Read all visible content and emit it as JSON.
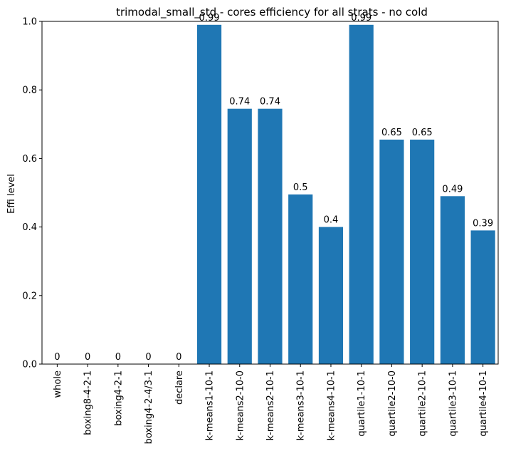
{
  "chart_data": {
    "type": "bar",
    "title": "trimodal_small_std - cores efficiency for all strats - no cold",
    "xlabel": "",
    "ylabel": "Effi level",
    "ylim": [
      0,
      1.0
    ],
    "yticks": [
      "0.0",
      "0.2",
      "0.4",
      "0.6",
      "0.8",
      "1.0"
    ],
    "grid": false,
    "bar_color": "#1f77b4",
    "categories": [
      "whole",
      "boxing8-4-2-1",
      "boxing4-2-1",
      "boxing4-2-4/3-1",
      "declare",
      "k-means1-10-1",
      "k-means2-10-0",
      "k-means2-10-1",
      "k-means3-10-1",
      "k-means4-10-1",
      "quartile1-10-1",
      "quartile2-10-0",
      "quartile2-10-1",
      "quartile3-10-1",
      "quartile4-10-1"
    ],
    "values": [
      0,
      0,
      0,
      0,
      0,
      0.99,
      0.745,
      0.745,
      0.495,
      0.4,
      0.99,
      0.655,
      0.655,
      0.49,
      0.39
    ],
    "value_labels": [
      "0",
      "0",
      "0",
      "0",
      "0",
      "0.99",
      "0.74",
      "0.74",
      "0.5",
      "0.4",
      "0.99",
      "0.65",
      "0.65",
      "0.49",
      "0.39"
    ]
  }
}
